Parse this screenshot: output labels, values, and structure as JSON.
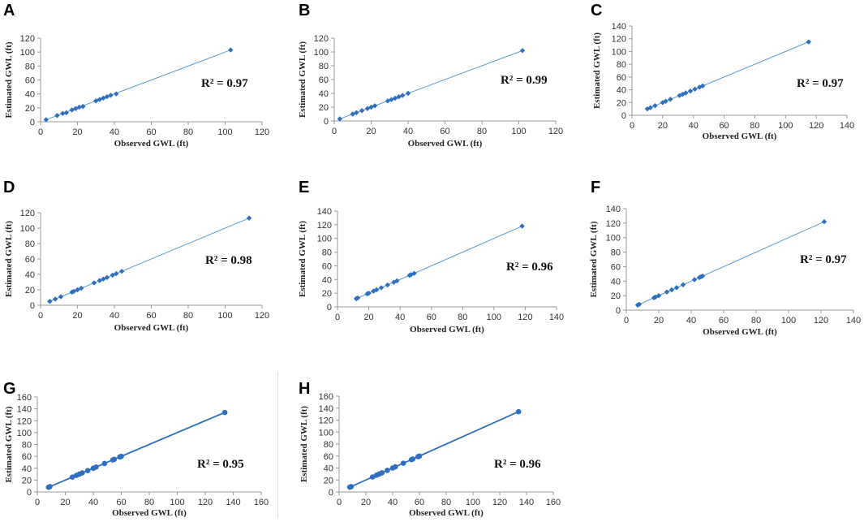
{
  "colors": {
    "marker": "#2E6FBF",
    "trendline": "#5B9BD5",
    "axis": "#9a9a9a"
  },
  "chart_data": [
    {
      "panel": "A",
      "type": "scatter",
      "title": "",
      "xlabel": "Observed GWL (ft)",
      "ylabel": "Estimated GWL (ft)",
      "xlim": [
        0,
        120
      ],
      "ylim": [
        0,
        120
      ],
      "xticks": [
        0,
        20,
        40,
        60,
        80,
        100,
        120
      ],
      "yticks": [
        0,
        20,
        40,
        60,
        80,
        100,
        120
      ],
      "r2_label": "R² = 0.97",
      "marker": "diamond",
      "trend": "thin",
      "x": [
        3,
        9,
        12,
        14,
        17,
        19,
        21,
        23,
        30,
        32,
        34,
        36,
        38,
        41,
        103
      ],
      "y": [
        3,
        9,
        12,
        13,
        17,
        19,
        21,
        22,
        30,
        32,
        34,
        36,
        38,
        40,
        103
      ]
    },
    {
      "panel": "B",
      "type": "scatter",
      "title": "",
      "xlabel": "Observed GWL (ft)",
      "ylabel": "Estimated GWL (ft)",
      "xlim": [
        0,
        120
      ],
      "ylim": [
        0,
        120
      ],
      "xticks": [
        0,
        20,
        40,
        60,
        80,
        100,
        120
      ],
      "yticks": [
        0,
        20,
        40,
        60,
        80,
        100,
        120
      ],
      "r2_label": "R² = 0.99",
      "marker": "diamond",
      "trend": "thin",
      "x": [
        3,
        10,
        12,
        15,
        18,
        20,
        22,
        29,
        31,
        33,
        35,
        37,
        40,
        102
      ],
      "y": [
        3,
        10,
        12,
        15,
        18,
        20,
        22,
        29,
        31,
        33,
        35,
        37,
        40,
        102
      ]
    },
    {
      "panel": "C",
      "type": "scatter",
      "title": "",
      "xlabel": "Observed GWL (ft)",
      "ylabel": "Estimated GWL (ft)",
      "xlim": [
        0,
        140
      ],
      "ylim": [
        0,
        140
      ],
      "xticks": [
        0,
        20,
        40,
        60,
        80,
        100,
        120,
        140
      ],
      "yticks": [
        0,
        20,
        40,
        60,
        80,
        100,
        120,
        140
      ],
      "r2_label": "R² = 0.97",
      "marker": "diamond",
      "trend": "thin",
      "x": [
        10,
        12,
        15,
        20,
        22,
        25,
        31,
        33,
        35,
        38,
        41,
        44,
        46,
        115
      ],
      "y": [
        10,
        12,
        15,
        20,
        22,
        25,
        31,
        33,
        35,
        38,
        41,
        44,
        46,
        115
      ]
    },
    {
      "panel": "D",
      "type": "scatter",
      "title": "",
      "xlabel": "Observed GWL (ft)",
      "ylabel": "Estimated GWL (ft)",
      "xlim": [
        0,
        120
      ],
      "ylim": [
        0,
        120
      ],
      "xticks": [
        0,
        20,
        40,
        60,
        80,
        100,
        120
      ],
      "yticks": [
        0,
        20,
        40,
        60,
        80,
        100,
        120
      ],
      "r2_label": "R² = 0.98",
      "marker": "diamond",
      "trend": "thin",
      "x": [
        5,
        8,
        11,
        17,
        18,
        20,
        22,
        29,
        32,
        34,
        36,
        39,
        41,
        44,
        113
      ],
      "y": [
        5,
        8,
        11,
        17,
        18,
        20,
        22,
        29,
        32,
        34,
        36,
        39,
        41,
        44,
        113
      ]
    },
    {
      "panel": "E",
      "type": "scatter",
      "title": "",
      "xlabel": "Observed GWL (ft)",
      "ylabel": "Estimated GWL (ft)",
      "xlim": [
        0,
        140
      ],
      "ylim": [
        0,
        140
      ],
      "xticks": [
        0,
        20,
        40,
        60,
        80,
        100,
        120,
        140
      ],
      "yticks": [
        0,
        20,
        40,
        60,
        80,
        100,
        120,
        140
      ],
      "r2_label": "R² = 0.96",
      "marker": "diamond",
      "trend": "thin",
      "x": [
        12,
        13,
        19,
        20,
        23,
        25,
        28,
        32,
        36,
        38,
        46,
        47,
        49,
        118
      ],
      "y": [
        12,
        13,
        19,
        20,
        23,
        25,
        28,
        32,
        36,
        38,
        46,
        47,
        49,
        118
      ]
    },
    {
      "panel": "F",
      "type": "scatter",
      "title": "",
      "xlabel": "Observed GWL (ft)",
      "ylabel": "Estimated GWL (ft)",
      "xlim": [
        0,
        140
      ],
      "ylim": [
        0,
        140
      ],
      "xticks": [
        0,
        20,
        40,
        60,
        80,
        100,
        120,
        140
      ],
      "yticks": [
        0,
        20,
        40,
        60,
        80,
        100,
        120,
        140
      ],
      "r2_label": "R² = 0.97",
      "marker": "diamond",
      "trend": "thin",
      "x": [
        7,
        8,
        17,
        18,
        20,
        25,
        28,
        31,
        35,
        42,
        45,
        46,
        47,
        122
      ],
      "y": [
        7,
        8,
        17,
        18,
        20,
        25,
        28,
        31,
        35,
        42,
        45,
        46,
        47,
        122
      ]
    },
    {
      "panel": "G",
      "type": "scatter",
      "title": "",
      "xlabel": "Observed GWL (ft)",
      "ylabel": "Estimated GWL (ft)",
      "xlim": [
        0,
        160
      ],
      "ylim": [
        0,
        160
      ],
      "xticks": [
        0,
        20,
        40,
        60,
        80,
        100,
        120,
        140,
        160
      ],
      "yticks": [
        0,
        20,
        40,
        60,
        80,
        100,
        120,
        140,
        160
      ],
      "r2_label": "R² = 0.95",
      "marker": "circle",
      "trend": "thick",
      "x": [
        8,
        9,
        25,
        28,
        30,
        32,
        36,
        40,
        42,
        48,
        54,
        55,
        59,
        60,
        134
      ],
      "y": [
        8,
        9,
        25,
        28,
        30,
        32,
        36,
        40,
        42,
        48,
        54,
        55,
        59,
        60,
        134
      ]
    },
    {
      "panel": "H",
      "type": "scatter",
      "title": "",
      "xlabel": "Observed GWL (ft)",
      "ylabel": "Estimated GWL (ft)",
      "xlim": [
        0,
        160
      ],
      "ylim": [
        0,
        160
      ],
      "xticks": [
        0,
        20,
        40,
        60,
        80,
        100,
        120,
        140,
        160
      ],
      "yticks": [
        0,
        20,
        40,
        60,
        80,
        100,
        120,
        140,
        160
      ],
      "r2_label": "R² = 0.96",
      "marker": "circle",
      "trend": "thick",
      "x": [
        8,
        9,
        25,
        28,
        30,
        32,
        36,
        40,
        42,
        48,
        54,
        55,
        59,
        60,
        134
      ],
      "y": [
        8,
        9,
        25,
        28,
        30,
        32,
        36,
        40,
        42,
        48,
        54,
        55,
        59,
        60,
        134
      ]
    }
  ]
}
